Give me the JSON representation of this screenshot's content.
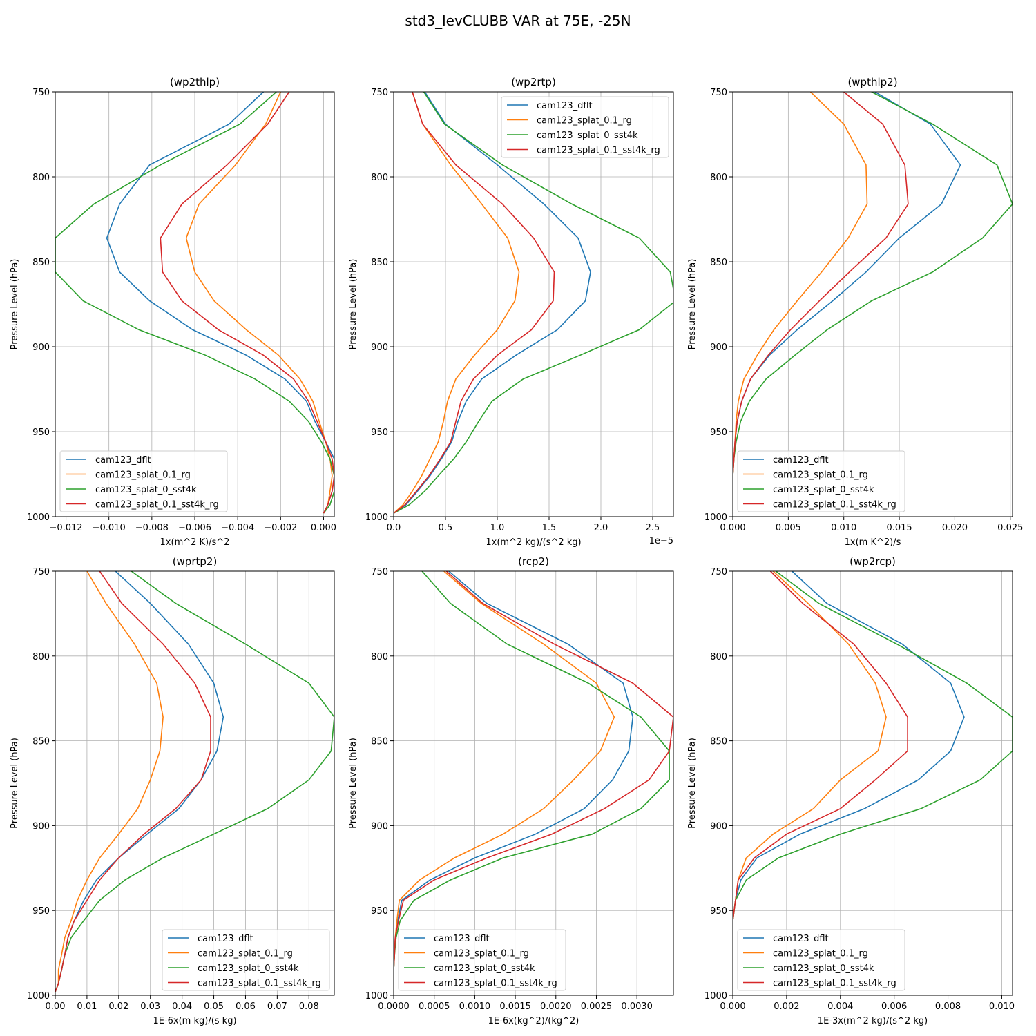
{
  "figure_title": "std3_levCLUBB VAR at 75E, -25N",
  "series_colors": [
    "#1f77b4",
    "#ff7f0e",
    "#2ca02c",
    "#d62728"
  ],
  "chart_data": [
    {
      "type": "line",
      "title": "(wp2thlp)",
      "xlabel": "1x(m^2 K)/s^2",
      "ylabel": "Pressure Level (hPa)",
      "xlim": [
        -0.0125,
        0.0005
      ],
      "ylim": [
        1000,
        750
      ],
      "xticks": [
        -0.012,
        -0.01,
        -0.008,
        -0.006,
        -0.004,
        -0.002,
        0.0
      ],
      "xtick_labels": [
        "−0.012",
        "−0.010",
        "−0.008",
        "−0.006",
        "−0.004",
        "−0.002",
        "0.000"
      ],
      "yticks": [
        750,
        800,
        850,
        900,
        950,
        1000
      ],
      "ytick_labels": [
        "750",
        "800",
        "850",
        "900",
        "950",
        "1000"
      ],
      "offset_text": "",
      "legend_loc": "lower-left",
      "levels": [
        750,
        769,
        793,
        816,
        836,
        856,
        873,
        890,
        905,
        919,
        932,
        944,
        956,
        966,
        976,
        985,
        993,
        998
      ],
      "series": [
        {
          "name": "cam123_dflt",
          "values": [
            -0.0028,
            -0.0044,
            -0.0081,
            -0.0095,
            -0.0101,
            -0.0095,
            -0.0081,
            -0.0061,
            -0.0036,
            -0.0018,
            -0.0008,
            -0.0004,
            0.0001,
            0.0005,
            0.0005,
            0.0004,
            0.0002,
            0.0
          ]
        },
        {
          "name": "cam123_splat_0.1_rg",
          "values": [
            -0.002,
            -0.0027,
            -0.0041,
            -0.0058,
            -0.0064,
            -0.006,
            -0.0051,
            -0.0036,
            -0.0021,
            -0.0011,
            -0.0005,
            -0.0002,
            0.0001,
            0.0003,
            0.0004,
            0.0003,
            0.0002,
            0.0
          ]
        },
        {
          "name": "cam123_splat_0_sst4k",
          "values": [
            -0.0022,
            -0.0039,
            -0.0076,
            -0.0107,
            -0.0125,
            -0.0125,
            -0.0112,
            -0.0086,
            -0.0055,
            -0.0032,
            -0.0016,
            -0.0007,
            -0.0001,
            0.0003,
            0.0005,
            0.0005,
            0.0003,
            0.0
          ]
        },
        {
          "name": "cam123_splat_0.1_sst4k_rg",
          "values": [
            -0.0016,
            -0.0026,
            -0.0045,
            -0.0066,
            -0.0076,
            -0.0075,
            -0.0066,
            -0.0049,
            -0.0028,
            -0.0014,
            -0.0007,
            -0.0003,
            0.0001,
            0.0004,
            0.0005,
            0.0004,
            0.0002,
            0.0
          ]
        }
      ]
    },
    {
      "type": "line",
      "title": "(wp2rtp)",
      "xlabel": "1x(m^2 kg)/(s^2 kg)",
      "ylabel": "Pressure Level (hPa)",
      "xlim": [
        0,
        2.7
      ],
      "ylim": [
        1000,
        750
      ],
      "xticks": [
        0.0,
        0.5,
        1.0,
        1.5,
        2.0,
        2.5
      ],
      "xtick_labels": [
        "0.0",
        "0.5",
        "1.0",
        "1.5",
        "2.0",
        "2.5"
      ],
      "yticks": [
        750,
        800,
        850,
        900,
        950,
        1000
      ],
      "ytick_labels": [
        "750",
        "800",
        "850",
        "900",
        "950",
        "1000"
      ],
      "offset_text": "1e−5",
      "legend_loc": "upper-right",
      "levels": [
        750,
        769,
        793,
        816,
        836,
        856,
        873,
        890,
        905,
        919,
        932,
        944,
        956,
        966,
        976,
        985,
        993,
        998
      ],
      "series": [
        {
          "name": "cam123_dflt",
          "values": [
            0.3,
            0.5,
            1.0,
            1.45,
            1.78,
            1.9,
            1.85,
            1.58,
            1.18,
            0.85,
            0.7,
            0.62,
            0.56,
            0.46,
            0.35,
            0.23,
            0.12,
            0.0
          ]
        },
        {
          "name": "cam123_splat_0.1_rg",
          "values": [
            0.18,
            0.28,
            0.55,
            0.85,
            1.1,
            1.21,
            1.17,
            1.0,
            0.78,
            0.6,
            0.52,
            0.48,
            0.43,
            0.35,
            0.27,
            0.18,
            0.09,
            0.0
          ]
        },
        {
          "name": "cam123_splat_0_sst4k",
          "values": [
            0.29,
            0.49,
            1.05,
            1.72,
            2.37,
            2.67,
            2.72,
            2.37,
            1.8,
            1.25,
            0.95,
            0.82,
            0.7,
            0.58,
            0.43,
            0.3,
            0.15,
            0.0
          ]
        },
        {
          "name": "cam123_splat_0.1_sst4k_rg",
          "values": [
            0.18,
            0.28,
            0.6,
            1.05,
            1.35,
            1.55,
            1.54,
            1.33,
            1.0,
            0.77,
            0.65,
            0.6,
            0.55,
            0.45,
            0.34,
            0.22,
            0.11,
            0.0
          ]
        }
      ]
    },
    {
      "type": "line",
      "title": "(wpthlp2)",
      "xlabel": "1x(m K^2)/s",
      "ylabel": "Pressure Level (hPa)",
      "xlim": [
        0,
        0.0252
      ],
      "ylim": [
        1000,
        750
      ],
      "xticks": [
        0.0,
        0.005,
        0.01,
        0.015,
        0.02,
        0.025
      ],
      "xtick_labels": [
        "0.000",
        "0.005",
        "0.010",
        "0.015",
        "0.020",
        "0.025"
      ],
      "yticks": [
        750,
        800,
        850,
        900,
        950,
        1000
      ],
      "ytick_labels": [
        "750",
        "800",
        "850",
        "900",
        "950",
        "1000"
      ],
      "offset_text": "",
      "legend_loc": "lower-left",
      "levels": [
        750,
        769,
        793,
        816,
        836,
        856,
        873,
        890,
        905,
        919,
        932,
        944,
        956,
        966,
        976,
        985,
        993,
        998
      ],
      "series": [
        {
          "name": "cam123_dflt",
          "values": [
            0.0128,
            0.0178,
            0.0205,
            0.0188,
            0.015,
            0.012,
            0.009,
            0.0058,
            0.0033,
            0.0016,
            0.0008,
            0.0004,
            0.0002,
            0.0001,
            0.0,
            0.0,
            0.0,
            0.0
          ]
        },
        {
          "name": "cam123_splat_0.1_rg",
          "values": [
            0.007,
            0.01,
            0.012,
            0.0121,
            0.0104,
            0.008,
            0.0058,
            0.0037,
            0.0022,
            0.001,
            0.0005,
            0.0003,
            0.0002,
            0.0001,
            0.0,
            0.0,
            0.0,
            0.0
          ]
        },
        {
          "name": "cam123_splat_0_sst4k",
          "values": [
            0.0125,
            0.018,
            0.0238,
            0.0252,
            0.0225,
            0.018,
            0.0125,
            0.0085,
            0.0056,
            0.003,
            0.0015,
            0.0007,
            0.0003,
            0.0001,
            0.0,
            0.0,
            0.0,
            0.0
          ]
        },
        {
          "name": "cam123_splat_0.1_sst4k_rg",
          "values": [
            0.01,
            0.0135,
            0.0155,
            0.0158,
            0.0138,
            0.0105,
            0.0078,
            0.0052,
            0.0032,
            0.0016,
            0.0008,
            0.0004,
            0.0002,
            0.0001,
            0.0,
            0.0,
            0.0,
            0.0
          ]
        }
      ]
    },
    {
      "type": "line",
      "title": "(wprtp2)",
      "xlabel": "1E-6x(m kg)/(s kg)",
      "ylabel": "Pressure Level (hPa)",
      "xlim": [
        0,
        0.088
      ],
      "ylim": [
        1000,
        750
      ],
      "xticks": [
        0.0,
        0.01,
        0.02,
        0.03,
        0.04,
        0.05,
        0.06,
        0.07,
        0.08
      ],
      "xtick_labels": [
        "0.00",
        "0.01",
        "0.02",
        "0.03",
        "0.04",
        "0.05",
        "0.06",
        "0.07",
        "0.08"
      ],
      "yticks": [
        750,
        800,
        850,
        900,
        950,
        1000
      ],
      "ytick_labels": [
        "750",
        "800",
        "850",
        "900",
        "950",
        "1000"
      ],
      "offset_text": "",
      "legend_loc": "lower-right",
      "levels": [
        750,
        769,
        793,
        816,
        836,
        856,
        873,
        890,
        905,
        919,
        932,
        944,
        956,
        966,
        976,
        985,
        993,
        998
      ],
      "series": [
        {
          "name": "cam123_dflt",
          "values": [
            0.019,
            0.03,
            0.042,
            0.05,
            0.053,
            0.051,
            0.046,
            0.039,
            0.029,
            0.02,
            0.013,
            0.009,
            0.006,
            0.004,
            0.003,
            0.002,
            0.001,
            0.0
          ]
        },
        {
          "name": "cam123_splat_0.1_rg",
          "values": [
            0.01,
            0.016,
            0.025,
            0.032,
            0.034,
            0.033,
            0.03,
            0.026,
            0.02,
            0.014,
            0.01,
            0.007,
            0.005,
            0.003,
            0.002,
            0.001,
            0.001,
            0.0
          ]
        },
        {
          "name": "cam123_splat_0_sst4k",
          "values": [
            0.024,
            0.038,
            0.06,
            0.08,
            0.088,
            0.087,
            0.08,
            0.067,
            0.05,
            0.034,
            0.022,
            0.014,
            0.009,
            0.005,
            0.003,
            0.002,
            0.001,
            0.0
          ]
        },
        {
          "name": "cam123_splat_0.1_sst4k_rg",
          "values": [
            0.014,
            0.021,
            0.034,
            0.044,
            0.049,
            0.049,
            0.046,
            0.038,
            0.028,
            0.02,
            0.014,
            0.01,
            0.006,
            0.004,
            0.003,
            0.002,
            0.001,
            0.0
          ]
        }
      ]
    },
    {
      "type": "line",
      "title": "(rcp2)",
      "xlabel": "1E-6x(kg^2)/(kg^2)",
      "ylabel": "Pressure Level (hPa)",
      "xlim": [
        0,
        0.00345
      ],
      "ylim": [
        1000,
        750
      ],
      "xticks": [
        0.0,
        0.0005,
        0.001,
        0.0015,
        0.002,
        0.0025,
        0.003
      ],
      "xtick_labels": [
        "0.0000",
        "0.0005",
        "0.0010",
        "0.0015",
        "0.0020",
        "0.0025",
        "0.0030"
      ],
      "yticks": [
        750,
        800,
        850,
        900,
        950,
        1000
      ],
      "ytick_labels": [
        "750",
        "800",
        "850",
        "900",
        "950",
        "1000"
      ],
      "offset_text": "",
      "legend_loc": "lower-left",
      "levels": [
        750,
        769,
        793,
        816,
        836,
        856,
        873,
        890,
        905,
        919,
        932,
        944,
        956,
        966,
        976,
        985,
        993,
        998
      ],
      "series": [
        {
          "name": "cam123_dflt",
          "values": [
            0.00068,
            0.00115,
            0.00215,
            0.00283,
            0.00295,
            0.0029,
            0.0027,
            0.00235,
            0.00175,
            0.001,
            0.00045,
            0.0001,
            5e-05,
            2e-05,
            1e-05,
            0.0,
            0.0,
            0.0
          ]
        },
        {
          "name": "cam123_splat_0.1_rg",
          "values": [
            0.00062,
            0.00108,
            0.00185,
            0.0025,
            0.00272,
            0.00255,
            0.00222,
            0.00185,
            0.00135,
            0.00075,
            0.00032,
            7e-05,
            4e-05,
            2e-05,
            1e-05,
            0.0,
            0.0,
            0.0
          ]
        },
        {
          "name": "cam123_splat_0_sst4k",
          "values": [
            0.00035,
            0.0007,
            0.0014,
            0.0024,
            0.00305,
            0.0034,
            0.0034,
            0.00305,
            0.00245,
            0.00135,
            0.0007,
            0.00025,
            8e-05,
            3e-05,
            1e-05,
            0.0,
            0.0,
            0.0
          ]
        },
        {
          "name": "cam123_splat_0.1_sst4k_rg",
          "values": [
            0.00065,
            0.0011,
            0.00198,
            0.00295,
            0.00345,
            0.0034,
            0.00315,
            0.0026,
            0.00195,
            0.00115,
            0.0005,
            0.00012,
            6e-05,
            2e-05,
            1e-05,
            0.0,
            0.0,
            0.0
          ]
        }
      ]
    },
    {
      "type": "line",
      "title": "(wp2rcp)",
      "xlabel": "1E-3x(m^2 kg)/(s^2 kg)",
      "ylabel": "Pressure Level (hPa)",
      "xlim": [
        0,
        0.0104
      ],
      "ylim": [
        1000,
        750
      ],
      "xticks": [
        0.0,
        0.002,
        0.004,
        0.006,
        0.008,
        0.01
      ],
      "xtick_labels": [
        "0.000",
        "0.002",
        "0.004",
        "0.006",
        "0.008",
        "0.010"
      ],
      "yticks": [
        750,
        800,
        850,
        900,
        950,
        1000
      ],
      "ytick_labels": [
        "750",
        "800",
        "850",
        "900",
        "950",
        "1000"
      ],
      "offset_text": "",
      "legend_loc": "lower-left",
      "levels": [
        750,
        769,
        793,
        816,
        836,
        856,
        873,
        890,
        905,
        919,
        932,
        944,
        956,
        966,
        976,
        985,
        993,
        998
      ],
      "series": [
        {
          "name": "cam123_dflt",
          "values": [
            0.0022,
            0.0035,
            0.0063,
            0.0081,
            0.0086,
            0.0081,
            0.0069,
            0.0049,
            0.0025,
            0.0009,
            0.0003,
            0.0001,
            0.0,
            0.0,
            0.0,
            0.0,
            0.0,
            0.0
          ]
        },
        {
          "name": "cam123_splat_0.1_rg",
          "values": [
            0.0015,
            0.0028,
            0.0043,
            0.0053,
            0.0057,
            0.0054,
            0.004,
            0.003,
            0.0015,
            0.0005,
            0.0002,
            0.0001,
            0.0,
            0.0,
            0.0,
            0.0,
            0.0,
            0.0
          ]
        },
        {
          "name": "cam123_splat_0_sst4k",
          "values": [
            0.0016,
            0.0032,
            0.0061,
            0.0087,
            0.0104,
            0.0104,
            0.0092,
            0.007,
            0.004,
            0.0017,
            0.0005,
            0.0001,
            0.0,
            0.0,
            0.0,
            0.0,
            0.0,
            0.0
          ]
        },
        {
          "name": "cam123_splat_0.1_sst4k_rg",
          "values": [
            0.0014,
            0.0026,
            0.0045,
            0.0057,
            0.0065,
            0.0065,
            0.0053,
            0.004,
            0.002,
            0.0008,
            0.0002,
            0.0001,
            0.0,
            0.0,
            0.0,
            0.0,
            0.0,
            0.0
          ]
        }
      ]
    }
  ]
}
